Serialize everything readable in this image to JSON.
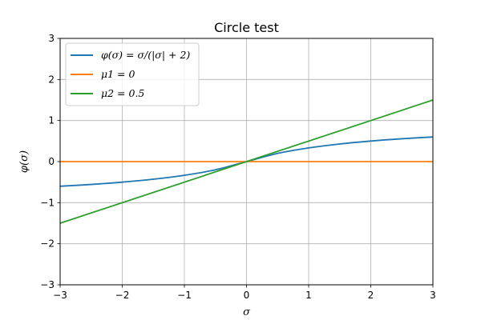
{
  "chart_data": {
    "type": "line",
    "title": "Circle test",
    "xlabel": "σ",
    "ylabel": "φ(σ)",
    "xlim": [
      -3,
      3
    ],
    "ylim": [
      -3,
      3
    ],
    "x_ticks": [
      -3,
      -2,
      -1,
      0,
      1,
      2,
      3
    ],
    "y_ticks": [
      -3,
      -2,
      -1,
      0,
      1,
      2,
      3
    ],
    "x_tick_labels": [
      "−3",
      "−2",
      "−1",
      "0",
      "1",
      "2",
      "3"
    ],
    "y_tick_labels": [
      "−3",
      "−2",
      "−1",
      "0",
      "1",
      "2",
      "3"
    ],
    "grid": true,
    "legend_position": "top-left",
    "series": [
      {
        "name": "φ(σ) = σ/(|σ| + 2)",
        "color": "#1f77b4",
        "x": [
          -3,
          -2.5,
          -2,
          -1.5,
          -1,
          -0.5,
          0,
          0.5,
          1,
          1.5,
          2,
          2.5,
          3
        ],
        "values": [
          -0.6,
          -0.556,
          -0.5,
          -0.429,
          -0.333,
          -0.2,
          0,
          0.2,
          0.333,
          0.429,
          0.5,
          0.556,
          0.6
        ]
      },
      {
        "name": "μ1 = 0",
        "color": "#ff7f0e",
        "x": [
          -3,
          3
        ],
        "values": [
          0,
          0
        ]
      },
      {
        "name": "μ2 = 0.5",
        "color": "#2ca02c",
        "x": [
          -3,
          3
        ],
        "values": [
          -1.5,
          1.5
        ]
      }
    ]
  }
}
